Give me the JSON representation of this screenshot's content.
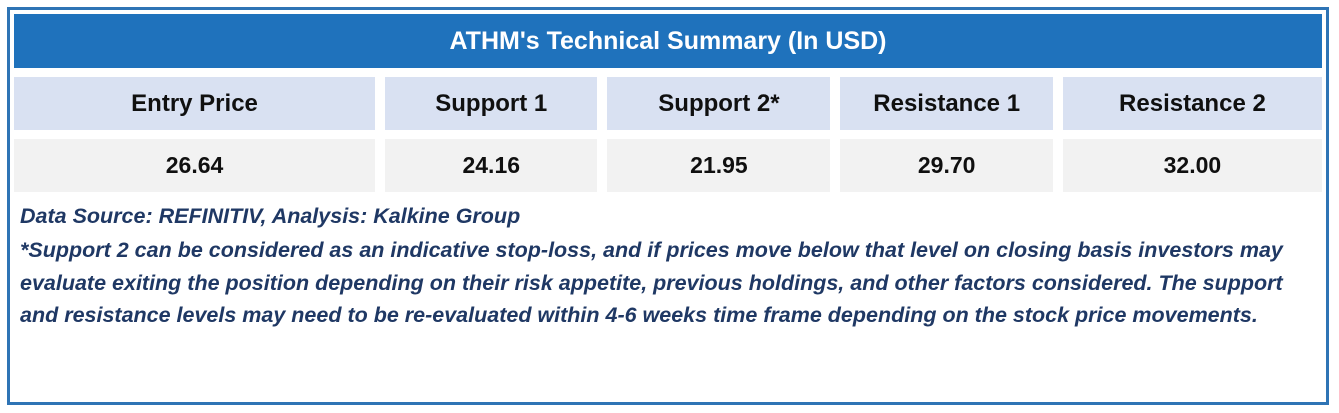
{
  "table": {
    "title": "ATHM's Technical Summary (In USD)",
    "columns": [
      "Entry Price",
      "Support 1",
      "Support 2*",
      "Resistance 1",
      "Resistance 2"
    ],
    "values": [
      "26.64",
      "24.16",
      "21.95",
      "29.70",
      "32.00"
    ]
  },
  "notes": {
    "source": "Data Source: REFINITIV, Analysis: Kalkine Group",
    "disclaimer": "*Support 2 can be considered as an indicative stop-loss, and if prices move below that level on closing basis investors may evaluate exiting the position depending on their risk appetite, previous holdings, and other factors considered. The support and resistance levels may need to be re-evaluated within 4-6 weeks time frame depending on the stock price movements."
  },
  "colors": {
    "title_bg": "#1F72BC",
    "header_bg": "#D9E1F2",
    "value_bg": "#F2F2F2",
    "border": "#2E74B5",
    "note_text": "#1F3864"
  },
  "chart_data": {
    "type": "table",
    "title": "ATHM's Technical Summary (In USD)",
    "columns": [
      "Entry Price",
      "Support 1",
      "Support 2*",
      "Resistance 1",
      "Resistance 2"
    ],
    "rows": [
      [
        26.64,
        24.16,
        21.95,
        29.7,
        32.0
      ]
    ],
    "source": "Data Source: REFINITIV, Analysis: Kalkine Group"
  }
}
